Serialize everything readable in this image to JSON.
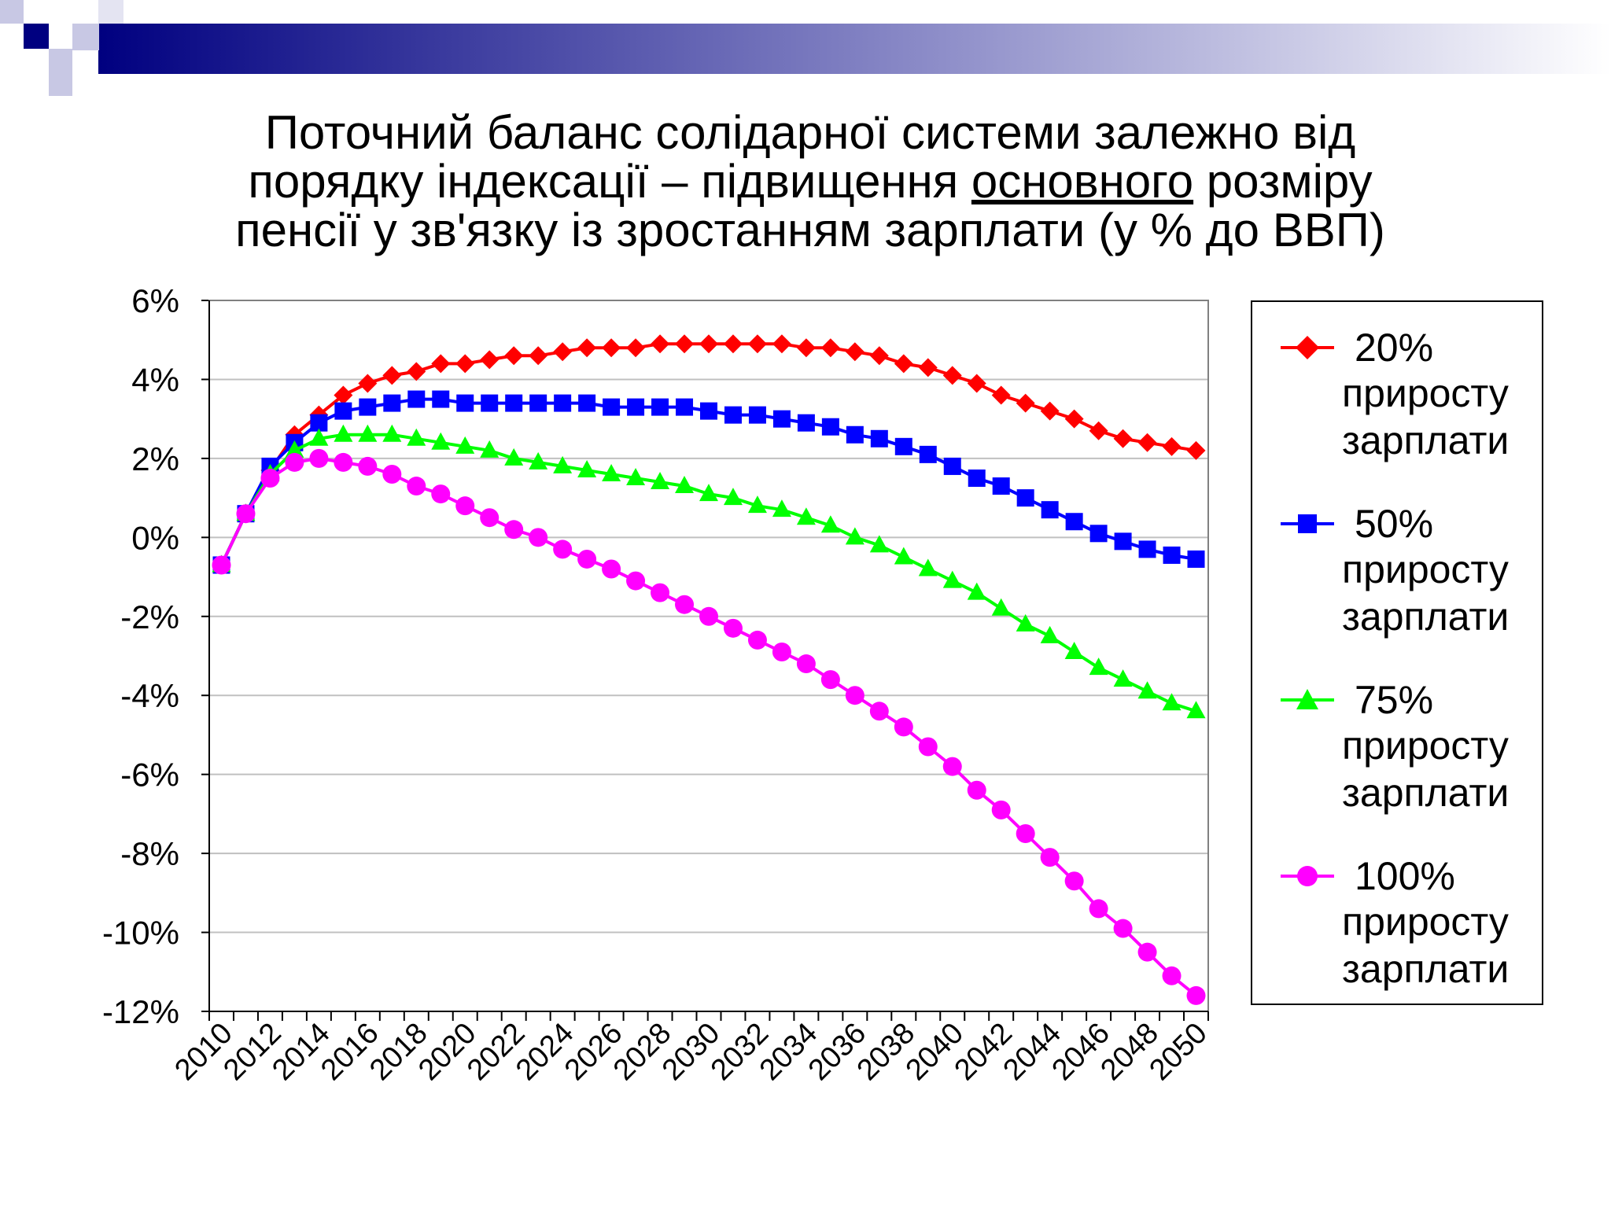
{
  "title": {
    "line1": "Поточний баланс солідарної системи залежно від",
    "line2_pre": "порядку індексації – підвищення ",
    "line2_under": "основного",
    "line2_post": " розміру",
    "line3": "пенсії у зв'язку із зростанням зарплати (у % до ВВП)"
  },
  "legend": [
    {
      "pct": "20%",
      "text1": "приросту",
      "text2": "зарплати"
    },
    {
      "pct": "50%",
      "text1": "приросту",
      "text2": "зарплати"
    },
    {
      "pct": "75%",
      "text1": "приросту",
      "text2": "зарплати"
    },
    {
      "pct": "100%",
      "text1": "приросту",
      "text2": "зарплати"
    }
  ],
  "chart_data": {
    "type": "line",
    "ylim": [
      -12,
      6
    ],
    "y_ticks": [
      "6%",
      "4%",
      "2%",
      "0%",
      "-2%",
      "-4%",
      "-6%",
      "-8%",
      "-10%",
      "-12%"
    ],
    "x_ticks": [
      "2010",
      "2012",
      "2014",
      "2016",
      "2018",
      "2020",
      "2022",
      "2024",
      "2026",
      "2028",
      "2030",
      "2032",
      "2034",
      "2036",
      "2038",
      "2040",
      "2042",
      "2044",
      "2046",
      "2048",
      "2050"
    ],
    "x_start": 2010,
    "x_end": 2050,
    "grid": true,
    "legend_position": "right",
    "series": [
      {
        "name": "20% приросту зарплати",
        "color": "#FF0000",
        "marker": "diamond",
        "values": [
          -0.7,
          0.6,
          1.7,
          2.6,
          3.1,
          3.6,
          3.9,
          4.1,
          4.2,
          4.4,
          4.4,
          4.5,
          4.6,
          4.6,
          4.7,
          4.8,
          4.8,
          4.8,
          4.9,
          4.9,
          4.9,
          4.9,
          4.9,
          4.9,
          4.8,
          4.8,
          4.7,
          4.6,
          4.4,
          4.3,
          4.1,
          3.9,
          3.6,
          3.4,
          3.2,
          3.0,
          2.7,
          2.5,
          2.4,
          2.3,
          2.2
        ]
      },
      {
        "name": "50% приросту зарплати",
        "color": "#0000FF",
        "marker": "square",
        "values": [
          -0.7,
          0.6,
          1.8,
          2.4,
          2.9,
          3.2,
          3.3,
          3.4,
          3.5,
          3.5,
          3.4,
          3.4,
          3.4,
          3.4,
          3.4,
          3.4,
          3.3,
          3.3,
          3.3,
          3.3,
          3.2,
          3.1,
          3.1,
          3.0,
          2.9,
          2.8,
          2.6,
          2.5,
          2.3,
          2.1,
          1.8,
          1.5,
          1.3,
          1.0,
          0.7,
          0.4,
          0.1,
          -0.1,
          -0.3,
          -0.45,
          -0.55
        ]
      },
      {
        "name": "75% приросту зарплати",
        "color": "#00FF00",
        "marker": "triangle",
        "values": [
          -0.7,
          0.6,
          1.6,
          2.2,
          2.5,
          2.6,
          2.6,
          2.6,
          2.5,
          2.4,
          2.3,
          2.2,
          2.0,
          1.9,
          1.8,
          1.7,
          1.6,
          1.5,
          1.4,
          1.3,
          1.1,
          1.0,
          0.8,
          0.7,
          0.5,
          0.3,
          0.0,
          -0.2,
          -0.5,
          -0.8,
          -1.1,
          -1.4,
          -1.8,
          -2.2,
          -2.5,
          -2.9,
          -3.3,
          -3.6,
          -3.9,
          -4.2,
          -4.4
        ]
      },
      {
        "name": "100% приросту зарплати",
        "color": "#FF00FF",
        "marker": "circle",
        "values": [
          -0.7,
          0.6,
          1.5,
          1.9,
          2.0,
          1.9,
          1.8,
          1.6,
          1.3,
          1.1,
          0.8,
          0.5,
          0.2,
          0.0,
          -0.3,
          -0.55,
          -0.8,
          -1.1,
          -1.4,
          -1.7,
          -2.0,
          -2.3,
          -2.6,
          -2.9,
          -3.2,
          -3.6,
          -4.0,
          -4.4,
          -4.8,
          -5.3,
          -5.8,
          -6.4,
          -6.9,
          -7.5,
          -8.1,
          -8.7,
          -9.4,
          -9.9,
          -10.5,
          -11.1,
          -11.6
        ]
      }
    ]
  }
}
